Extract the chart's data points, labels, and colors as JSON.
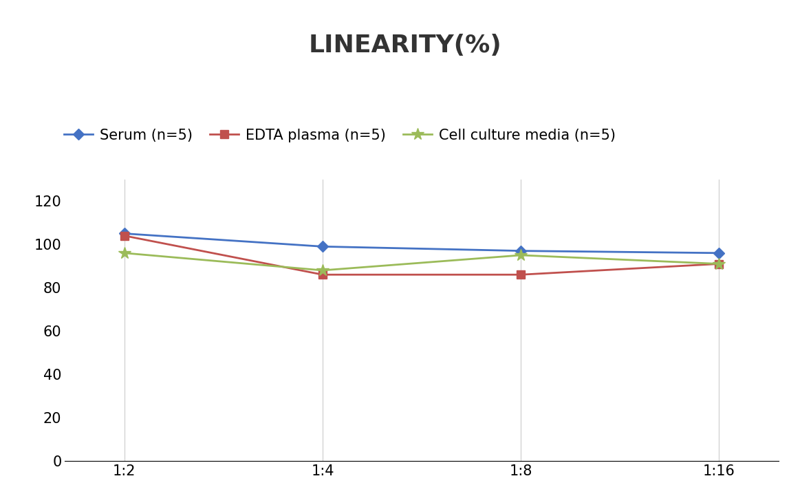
{
  "title": "LINEARITY(%)",
  "x_labels": [
    "1:2",
    "1:4",
    "1:8",
    "1:16"
  ],
  "series": [
    {
      "label": "Serum (n=5)",
      "values": [
        105,
        99,
        97,
        96
      ],
      "color": "#4472C4",
      "marker": "D",
      "marker_size": 8,
      "linewidth": 2
    },
    {
      "label": "EDTA plasma (n=5)",
      "values": [
        104,
        86,
        86,
        91
      ],
      "color": "#C0504D",
      "marker": "s",
      "marker_size": 8,
      "linewidth": 2
    },
    {
      "label": "Cell culture media (n=5)",
      "values": [
        96,
        88,
        95,
        91
      ],
      "color": "#9BBB59",
      "marker": "*",
      "marker_size": 13,
      "linewidth": 2
    }
  ],
  "ylim": [
    0,
    130
  ],
  "yticks": [
    0,
    20,
    40,
    60,
    80,
    100,
    120
  ],
  "background_color": "#ffffff",
  "grid_color": "#d3d3d3",
  "title_fontsize": 26,
  "legend_fontsize": 15,
  "tick_fontsize": 15
}
